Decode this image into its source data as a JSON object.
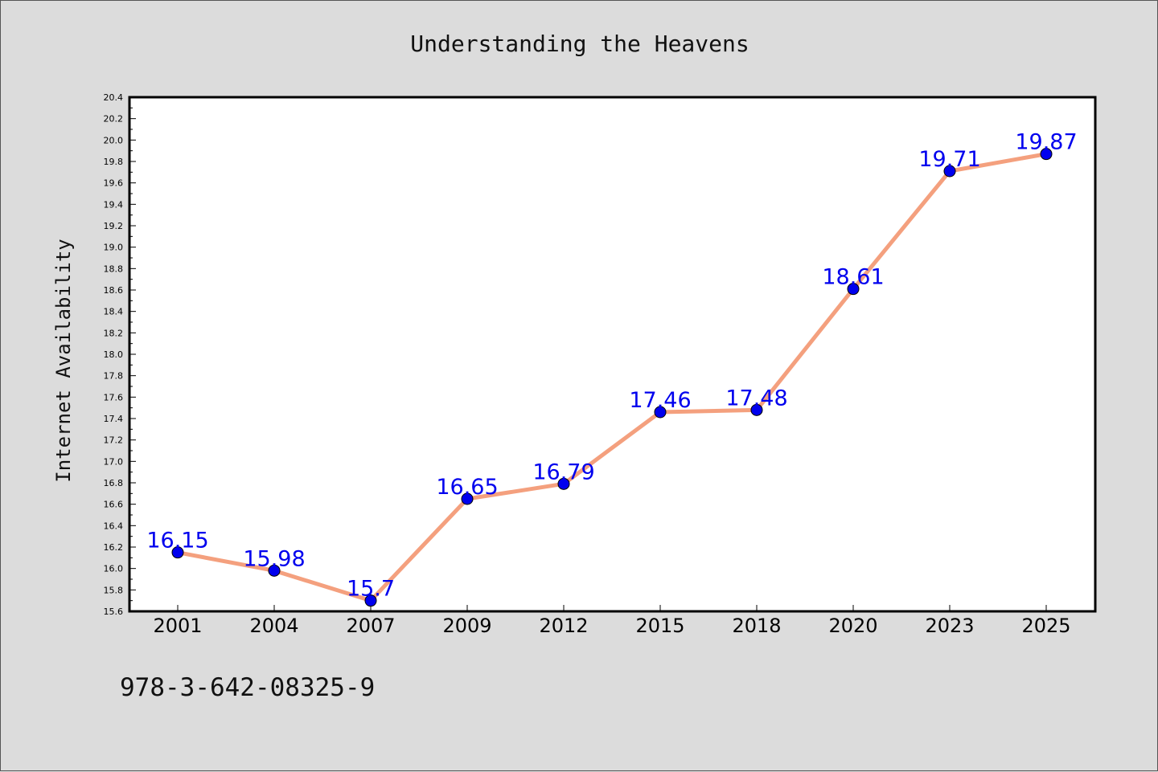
{
  "chart_data": {
    "type": "line",
    "title": "Understanding the Heavens",
    "xlabel": "",
    "ylabel": "Internet Availability",
    "categories": [
      "2001",
      "2004",
      "2007",
      "2009",
      "2012",
      "2015",
      "2018",
      "2020",
      "2023",
      "2025"
    ],
    "series": [
      {
        "values": [
          16.15,
          15.98,
          15.7,
          16.65,
          16.79,
          17.46,
          17.48,
          18.61,
          19.71,
          19.87
        ]
      }
    ],
    "data_labels": [
      "16.15",
      "15.98",
      "15.7",
      "16.65",
      "16.79",
      "17.46",
      "17.48",
      "18.61",
      "19.71",
      "19.87"
    ],
    "ylim": [
      15.6,
      20.4
    ],
    "yticks": [
      "15.6",
      "15.8",
      "16.0",
      "16.2",
      "16.4",
      "16.6",
      "16.8",
      "17.0",
      "17.2",
      "17.4",
      "17.6",
      "17.8",
      "18.0",
      "18.2",
      "18.4",
      "18.6",
      "18.8",
      "19.0",
      "19.2",
      "19.4",
      "19.6",
      "19.8",
      "20.0",
      "20.2",
      "20.4"
    ],
    "grid": false,
    "legend": "none",
    "line_color": "#f4a07e",
    "marker_color": "#0000ee",
    "label_color": "#0000ee",
    "plot_background": "#ffffff",
    "page_background": "#dcdcdc"
  },
  "footer": {
    "isbn": "978-3-642-08325-9"
  }
}
